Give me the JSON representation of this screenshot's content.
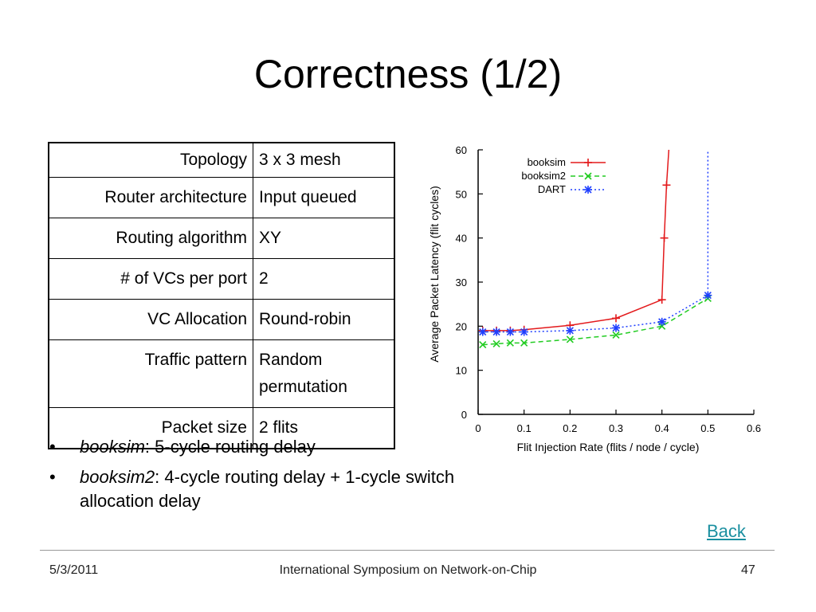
{
  "slide": {
    "title": "Correctness (1/2)",
    "date": "5/3/2011",
    "conference": "International Symposium on Network-on-Chip",
    "page_number": "47",
    "back_link": "Back"
  },
  "config_table": {
    "rows": [
      {
        "key": "Topology",
        "value": "3 x 3 mesh"
      },
      {
        "key": "Router architecture",
        "value": "Input queued"
      },
      {
        "key": "Routing algorithm",
        "value": "XY"
      },
      {
        "key": "# of VCs per port",
        "value": "2"
      },
      {
        "key": "VC Allocation",
        "value": "Round-robin"
      },
      {
        "key": "Traffic pattern",
        "value": "Random permutation"
      },
      {
        "key": "Packet size",
        "value": "2 flits"
      }
    ]
  },
  "bullets": [
    {
      "term": "booksim",
      "text": ": 5-cycle routing delay"
    },
    {
      "term": "booksim2",
      "text": ": 4-cycle routing delay + 1-cycle switch allocation delay"
    }
  ],
  "chart_data": {
    "type": "line",
    "xlabel": "Flit Injection Rate (flits / node / cycle)",
    "ylabel": "Average Packet Latency (flit cycles)",
    "xlim": [
      0,
      0.6
    ],
    "ylim": [
      0,
      60
    ],
    "xticks": [
      "0",
      "0.1",
      "0.2",
      "0.3",
      "0.4",
      "0.5",
      "0.6"
    ],
    "yticks": [
      "0",
      "10",
      "20",
      "30",
      "40",
      "50",
      "60"
    ],
    "legend_position": "top-left",
    "series": [
      {
        "name": "booksim",
        "color": "#e31a1c",
        "marker": "+",
        "dash": "solid",
        "x": [
          0.01,
          0.04,
          0.07,
          0.1,
          0.2,
          0.3,
          0.4,
          0.405,
          0.41,
          0.415
        ],
        "y": [
          19,
          19,
          19,
          19.2,
          20.2,
          21.8,
          26,
          40,
          52,
          60
        ]
      },
      {
        "name": "booksim2",
        "color": "#22cc22",
        "marker": "x",
        "dash": "dashed",
        "x": [
          0.01,
          0.04,
          0.07,
          0.1,
          0.2,
          0.3,
          0.4,
          0.5
        ],
        "y": [
          15.8,
          16,
          16.2,
          16.2,
          17,
          18,
          20,
          26.3
        ]
      },
      {
        "name": "DART",
        "color": "#1f3fff",
        "marker": "*",
        "dash": "dotted",
        "x": [
          0.01,
          0.04,
          0.07,
          0.1,
          0.2,
          0.3,
          0.4,
          0.5,
          0.5
        ],
        "y": [
          18.7,
          18.7,
          18.7,
          18.7,
          19,
          19.6,
          21,
          27,
          60
        ]
      }
    ]
  }
}
